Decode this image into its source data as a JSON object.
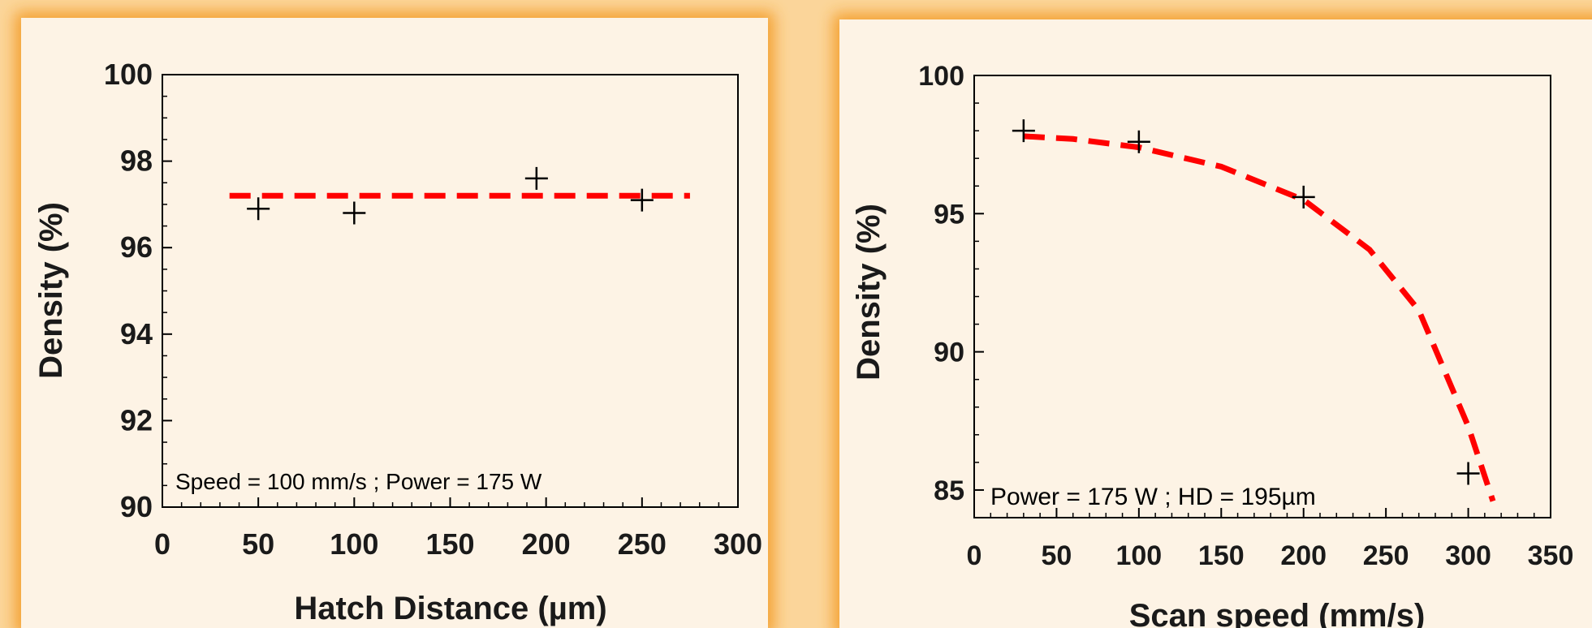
{
  "chart_data": [
    {
      "type": "scatter",
      "title": "",
      "xlabel": "Hatch Distance (µm)",
      "ylabel": "Density (%)",
      "xlim": [
        0,
        300
      ],
      "ylim": [
        90,
        100
      ],
      "xticks": [
        0,
        50,
        100,
        150,
        200,
        250,
        300
      ],
      "yticks": [
        90,
        92,
        94,
        96,
        98,
        100
      ],
      "annotation": "Speed = 100 mm/s ; Power = 175 W",
      "grid": false,
      "series": [
        {
          "x": [
            50,
            100,
            195,
            250
          ],
          "y": [
            96.9,
            96.8,
            97.6,
            97.1
          ],
          "marker": "plus",
          "color": "#000000"
        }
      ],
      "fit": {
        "style": "dashed",
        "color": "#ff0000",
        "x": [
          35,
          275
        ],
        "y": [
          97.2,
          97.2
        ]
      }
    },
    {
      "type": "scatter",
      "title": "",
      "xlabel": "Scan speed (mm/s)",
      "ylabel": "Density (%)",
      "xlim": [
        0,
        350
      ],
      "ylim": [
        84,
        100
      ],
      "xticks": [
        0,
        50,
        100,
        150,
        200,
        250,
        300,
        350
      ],
      "yticks": [
        85,
        90,
        95,
        100
      ],
      "annotation": "Power = 175 W ; HD = 195µm",
      "grid": false,
      "series": [
        {
          "x": [
            30,
            100,
            200,
            300
          ],
          "y": [
            98,
            97.6,
            95.6,
            85.6
          ],
          "marker": "plus",
          "color": "#000000"
        }
      ],
      "fit": {
        "style": "dashed",
        "color": "#ff0000",
        "x": [
          30,
          60,
          100,
          150,
          200,
          240,
          270,
          300,
          315
        ],
        "y": [
          97.8,
          97.7,
          97.4,
          96.7,
          95.5,
          93.7,
          91.5,
          87.3,
          84.6
        ]
      }
    }
  ]
}
